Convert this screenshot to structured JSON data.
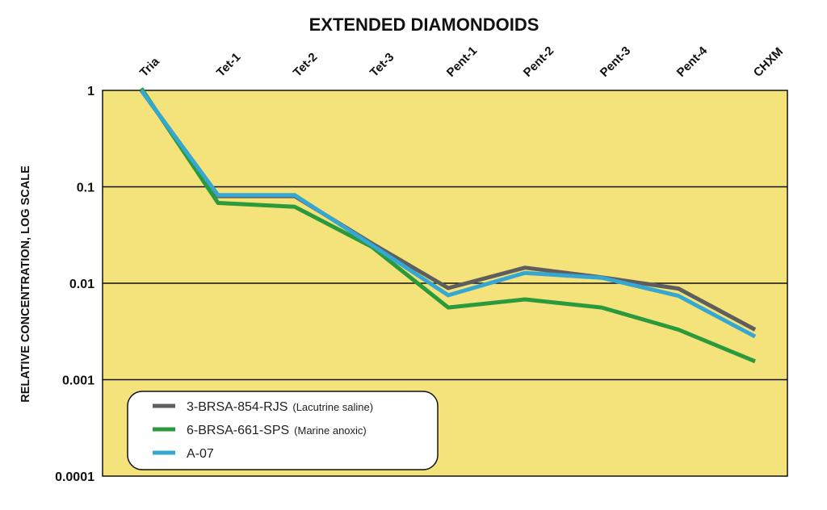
{
  "chart_data": {
    "type": "line",
    "title": "EXTENDED DIAMONDOIDS",
    "ylabel": "RELATIVE CONCENTRATION, LOG SCALE",
    "yscale": "log",
    "ylim": [
      0.0001,
      1
    ],
    "yticks": [
      {
        "value": 1,
        "label": "1"
      },
      {
        "value": 0.1,
        "label": "0.1"
      },
      {
        "value": 0.01,
        "label": "0.01"
      },
      {
        "value": 0.001,
        "label": "0.001"
      },
      {
        "value": 0.0001,
        "label": "0.0001"
      }
    ],
    "grid": true,
    "x_axis_position": "top",
    "categories": [
      "Tria",
      "Tet-1",
      "Tet-2",
      "Tet-3",
      "Pent-1",
      "Pent-2",
      "Pent-3",
      "Pent-4",
      "CHXM"
    ],
    "legend_position": "bottom-left",
    "plot_background": "#f4e27a",
    "series": [
      {
        "name": "3-BRSA-854-RJS",
        "qualifier": "(Lacutrine saline)",
        "color": "#5e5e5e",
        "values": [
          1.0,
          0.08,
          0.08,
          0.026,
          0.0089,
          0.0145,
          0.0115,
          0.0088,
          0.0033
        ]
      },
      {
        "name": "6-BRSA-661-SPS",
        "qualifier": "(Marine anoxic)",
        "color": "#2a9a3c",
        "values": [
          1.05,
          0.068,
          0.062,
          0.024,
          0.0056,
          0.0068,
          0.0056,
          0.0033,
          0.00155
        ]
      },
      {
        "name": "A-07",
        "qualifier": "",
        "color": "#36a7d2",
        "values": [
          1.0,
          0.082,
          0.082,
          0.025,
          0.0075,
          0.0128,
          0.0114,
          0.0074,
          0.0028
        ]
      }
    ]
  }
}
